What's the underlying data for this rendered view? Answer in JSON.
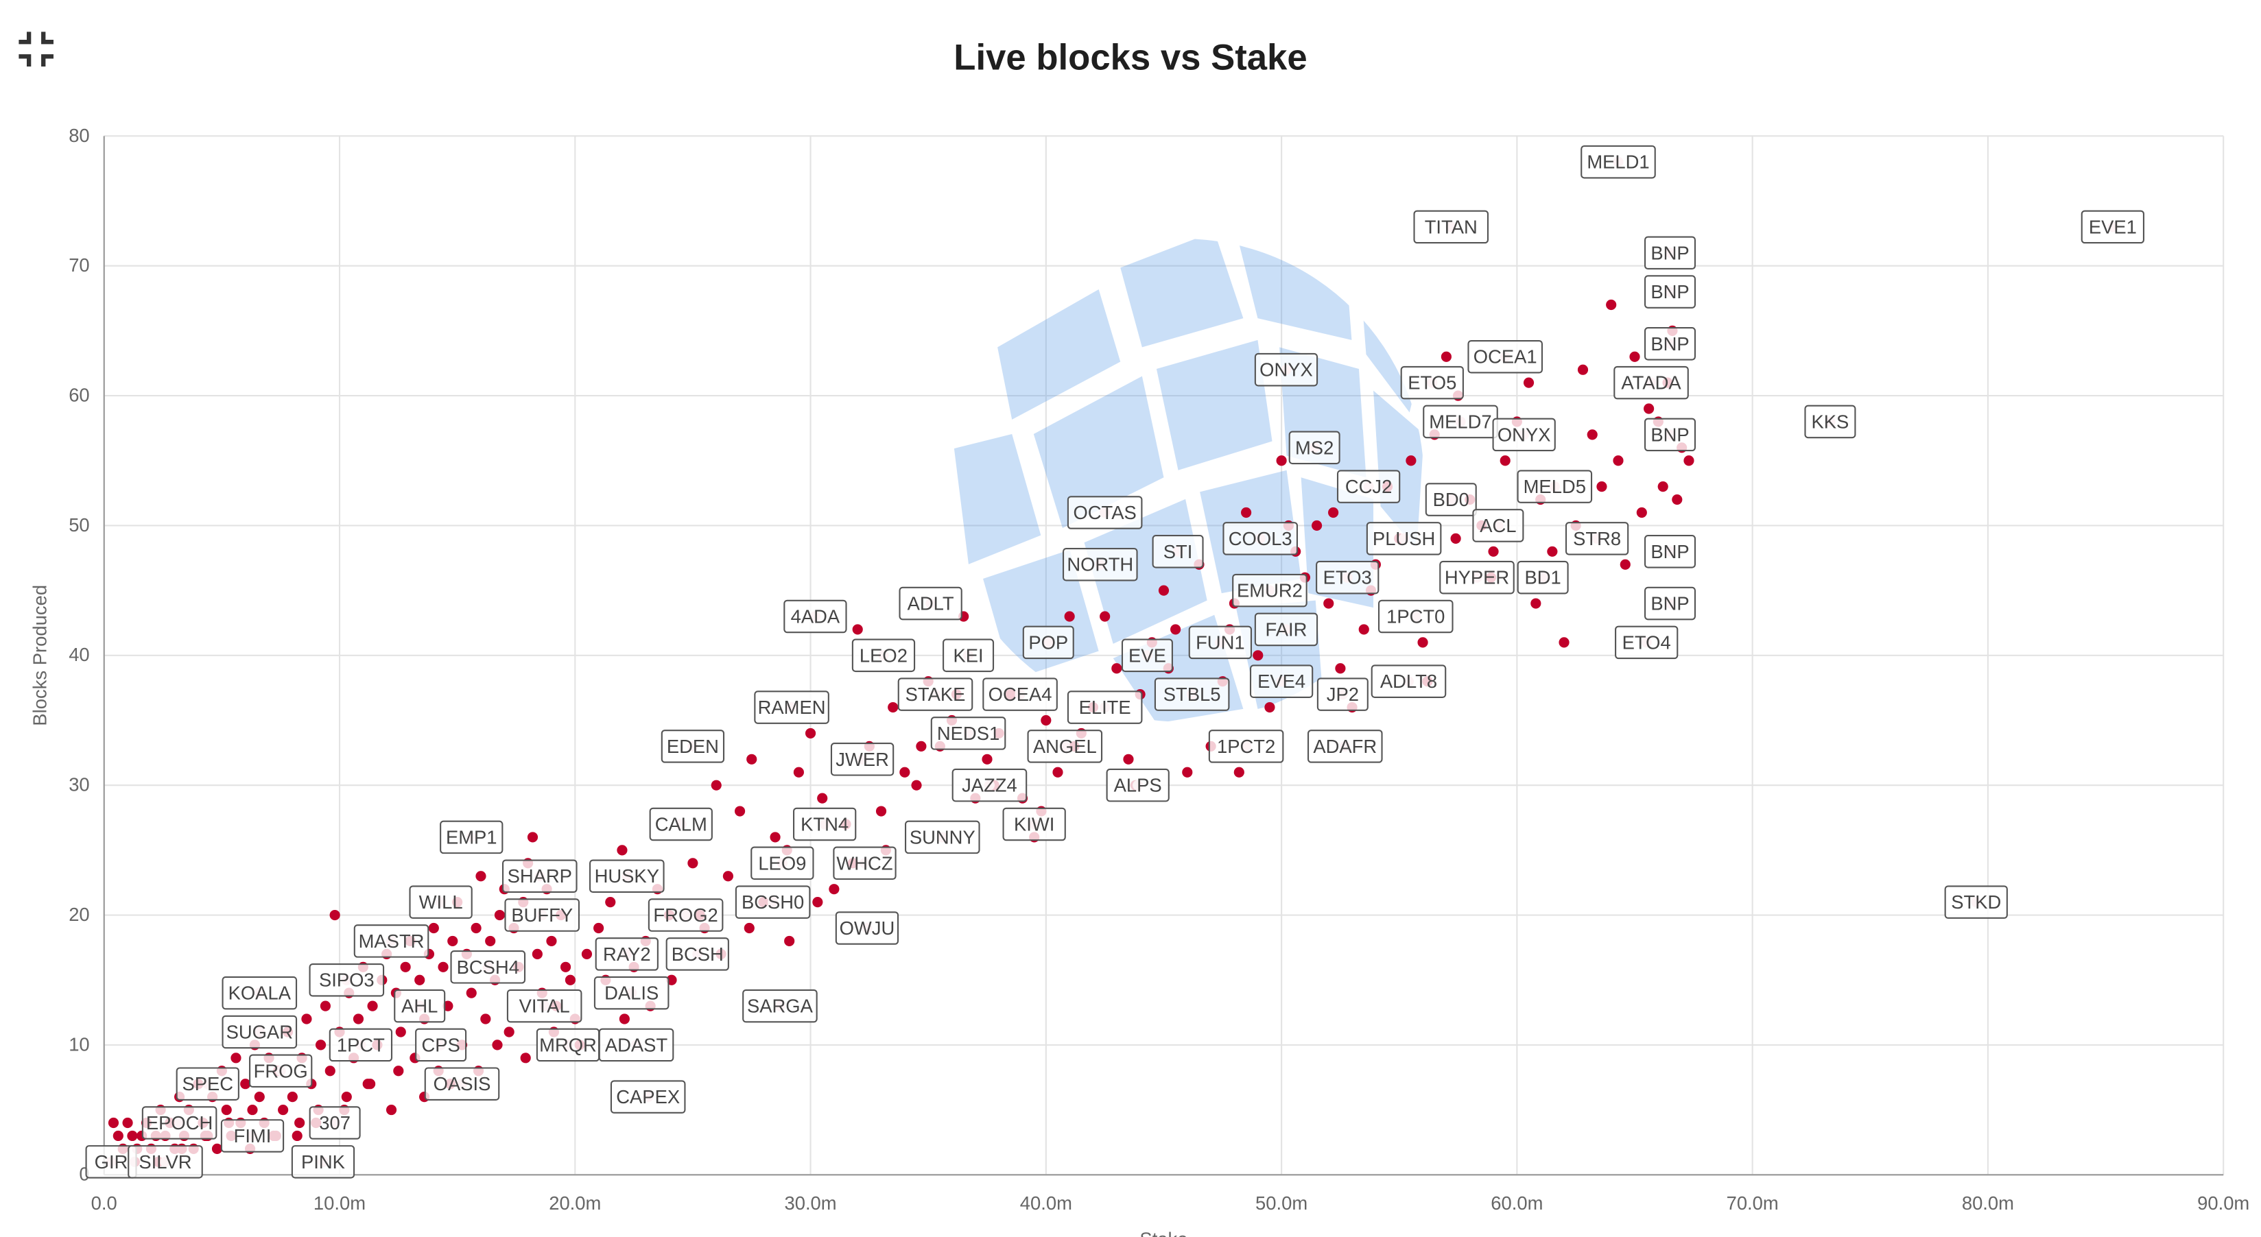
{
  "page": {
    "title": "Live blocks vs Stake",
    "exit_fullscreen_icon": "exit-fullscreen-icon",
    "watermark_icon": "globe-watermark-icon"
  },
  "chart_data": {
    "type": "scatter",
    "title": "Live blocks vs Stake",
    "xlabel": "Stake",
    "ylabel": "Blocks Produced",
    "xlim": [
      0,
      90
    ],
    "ylim": [
      0,
      80
    ],
    "x_unit": "m",
    "xticks": [
      "0.0",
      "10.0m",
      "20.0m",
      "30.0m",
      "40.0m",
      "50.0m",
      "60.0m",
      "70.0m",
      "80.0m",
      "90.0m"
    ],
    "yticks": [
      "0",
      "10",
      "20",
      "30",
      "40",
      "50",
      "60",
      "70",
      "80"
    ],
    "grid": true,
    "point_color": "#c0002a",
    "labeled_points": [
      {
        "name": "MELD1",
        "x": 64.3,
        "y": 78
      },
      {
        "name": "TITAN",
        "x": 57.2,
        "y": 73
      },
      {
        "name": "EVE1",
        "x": 85.3,
        "y": 73
      },
      {
        "name": "BNP",
        "x": 66.5,
        "y": 71
      },
      {
        "name": "BNP",
        "x": 66.5,
        "y": 68
      },
      {
        "name": "BNP",
        "x": 66.5,
        "y": 64
      },
      {
        "name": "ATADA",
        "x": 65.7,
        "y": 61
      },
      {
        "name": "OCEA1",
        "x": 59.5,
        "y": 63
      },
      {
        "name": "ETO5",
        "x": 56.4,
        "y": 61
      },
      {
        "name": "ONYX",
        "x": 50.2,
        "y": 62
      },
      {
        "name": "KKS",
        "x": 73.3,
        "y": 58
      },
      {
        "name": "MELD7",
        "x": 57.6,
        "y": 58
      },
      {
        "name": "ONYX",
        "x": 60.3,
        "y": 57
      },
      {
        "name": "BNP",
        "x": 66.5,
        "y": 57
      },
      {
        "name": "MS2",
        "x": 51.4,
        "y": 56
      },
      {
        "name": "CCJ2",
        "x": 53.7,
        "y": 53
      },
      {
        "name": "MELD5",
        "x": 61.6,
        "y": 53
      },
      {
        "name": "BD0",
        "x": 57.2,
        "y": 52
      },
      {
        "name": "OCTAS",
        "x": 42.5,
        "y": 51
      },
      {
        "name": "ACL",
        "x": 59.2,
        "y": 50
      },
      {
        "name": "COOL3",
        "x": 49.1,
        "y": 49
      },
      {
        "name": "PLUSH",
        "x": 55.2,
        "y": 49
      },
      {
        "name": "STR8",
        "x": 63.4,
        "y": 49
      },
      {
        "name": "STI",
        "x": 45.6,
        "y": 48
      },
      {
        "name": "BNP",
        "x": 66.5,
        "y": 48
      },
      {
        "name": "NORTH",
        "x": 42.3,
        "y": 47
      },
      {
        "name": "HYPER",
        "x": 58.3,
        "y": 46
      },
      {
        "name": "BD1",
        "x": 61.1,
        "y": 46
      },
      {
        "name": "ETO3",
        "x": 52.8,
        "y": 46
      },
      {
        "name": "EMUR2",
        "x": 49.5,
        "y": 45
      },
      {
        "name": "ADLT",
        "x": 35.1,
        "y": 44
      },
      {
        "name": "4ADA",
        "x": 30.2,
        "y": 43
      },
      {
        "name": "BNP",
        "x": 66.5,
        "y": 44
      },
      {
        "name": "1PCT0",
        "x": 55.7,
        "y": 43
      },
      {
        "name": "FAIR",
        "x": 50.2,
        "y": 42
      },
      {
        "name": "POP",
        "x": 40.1,
        "y": 41
      },
      {
        "name": "FUN1",
        "x": 47.4,
        "y": 41
      },
      {
        "name": "ETO4",
        "x": 65.5,
        "y": 41
      },
      {
        "name": "LEO2",
        "x": 33.1,
        "y": 40
      },
      {
        "name": "KEI",
        "x": 36.7,
        "y": 40
      },
      {
        "name": "EVE",
        "x": 44.3,
        "y": 40
      },
      {
        "name": "EVE4",
        "x": 50.0,
        "y": 38
      },
      {
        "name": "ADLT8",
        "x": 55.4,
        "y": 38
      },
      {
        "name": "STAKE",
        "x": 35.3,
        "y": 37
      },
      {
        "name": "OCEA4",
        "x": 38.9,
        "y": 37
      },
      {
        "name": "STBL5",
        "x": 46.2,
        "y": 37
      },
      {
        "name": "JP2",
        "x": 52.6,
        "y": 37
      },
      {
        "name": "RAMEN",
        "x": 29.2,
        "y": 36
      },
      {
        "name": "ELITE",
        "x": 42.5,
        "y": 36
      },
      {
        "name": "NEDS1",
        "x": 36.7,
        "y": 34
      },
      {
        "name": "EDEN",
        "x": 25.0,
        "y": 33
      },
      {
        "name": "ANGEL",
        "x": 40.8,
        "y": 33
      },
      {
        "name": "1PCT2",
        "x": 48.5,
        "y": 33
      },
      {
        "name": "ADAFR",
        "x": 52.7,
        "y": 33
      },
      {
        "name": "JWER",
        "x": 32.2,
        "y": 32
      },
      {
        "name": "JAZZ4",
        "x": 37.6,
        "y": 30
      },
      {
        "name": "ALPS",
        "x": 43.9,
        "y": 30
      },
      {
        "name": "EMP1",
        "x": 15.6,
        "y": 26
      },
      {
        "name": "CALM",
        "x": 24.5,
        "y": 27
      },
      {
        "name": "KTN4",
        "x": 30.6,
        "y": 27
      },
      {
        "name": "KIWI",
        "x": 39.5,
        "y": 27
      },
      {
        "name": "SUNNY",
        "x": 35.6,
        "y": 26
      },
      {
        "name": "SHARP",
        "x": 18.5,
        "y": 23
      },
      {
        "name": "HUSKY",
        "x": 22.2,
        "y": 23
      },
      {
        "name": "LEO9",
        "x": 28.8,
        "y": 24
      },
      {
        "name": "WHCZ",
        "x": 32.3,
        "y": 24
      },
      {
        "name": "WILL",
        "x": 14.3,
        "y": 21
      },
      {
        "name": "BUFFY",
        "x": 18.6,
        "y": 20
      },
      {
        "name": "FROG2",
        "x": 24.7,
        "y": 20
      },
      {
        "name": "BCSH0",
        "x": 28.4,
        "y": 21
      },
      {
        "name": "OWJU",
        "x": 32.4,
        "y": 19
      },
      {
        "name": "MASTR",
        "x": 12.2,
        "y": 18
      },
      {
        "name": "RAY2",
        "x": 22.2,
        "y": 17
      },
      {
        "name": "BCSH",
        "x": 25.2,
        "y": 17
      },
      {
        "name": "BCSH4",
        "x": 16.3,
        "y": 16
      },
      {
        "name": "SIPO3",
        "x": 10.3,
        "y": 15
      },
      {
        "name": "KOALA",
        "x": 6.6,
        "y": 14
      },
      {
        "name": "DALIS",
        "x": 22.4,
        "y": 14
      },
      {
        "name": "AHL",
        "x": 13.4,
        "y": 13
      },
      {
        "name": "VITAL",
        "x": 18.7,
        "y": 13
      },
      {
        "name": "SARGA",
        "x": 28.7,
        "y": 13
      },
      {
        "name": "SUGAR",
        "x": 6.6,
        "y": 11
      },
      {
        "name": "1PCT",
        "x": 10.9,
        "y": 10
      },
      {
        "name": "CPS",
        "x": 14.3,
        "y": 10
      },
      {
        "name": "MRQR",
        "x": 19.7,
        "y": 10
      },
      {
        "name": "ADAST",
        "x": 22.6,
        "y": 10
      },
      {
        "name": "FROG",
        "x": 7.5,
        "y": 8
      },
      {
        "name": "SPEC",
        "x": 4.4,
        "y": 7
      },
      {
        "name": "OASIS",
        "x": 15.2,
        "y": 7
      },
      {
        "name": "CAPEX",
        "x": 23.1,
        "y": 6
      },
      {
        "name": "EPOCH",
        "x": 3.2,
        "y": 4
      },
      {
        "name": "307",
        "x": 9.8,
        "y": 4
      },
      {
        "name": "FIMI",
        "x": 6.3,
        "y": 3
      },
      {
        "name": "GIR",
        "x": 0.3,
        "y": 1
      },
      {
        "name": "SILVR",
        "x": 2.6,
        "y": 1
      },
      {
        "name": "PINK",
        "x": 9.3,
        "y": 1
      },
      {
        "name": "STKD",
        "x": 79.5,
        "y": 21
      }
    ],
    "points": [
      [
        0.4,
        4
      ],
      [
        0.6,
        3
      ],
      [
        0.8,
        2
      ],
      [
        1.0,
        4
      ],
      [
        1.2,
        3
      ],
      [
        1.4,
        2
      ],
      [
        1.6,
        3
      ],
      [
        1.8,
        4
      ],
      [
        2.0,
        2
      ],
      [
        2.2,
        3
      ],
      [
        2.4,
        5
      ],
      [
        2.6,
        3
      ],
      [
        2.8,
        4
      ],
      [
        3.0,
        2
      ],
      [
        3.2,
        6
      ],
      [
        3.4,
        3
      ],
      [
        3.6,
        5
      ],
      [
        3.8,
        2
      ],
      [
        4.0,
        7
      ],
      [
        4.2,
        4
      ],
      [
        4.4,
        3
      ],
      [
        4.6,
        6
      ],
      [
        4.8,
        2
      ],
      [
        5.0,
        8
      ],
      [
        5.2,
        5
      ],
      [
        5.4,
        3
      ],
      [
        5.6,
        9
      ],
      [
        5.8,
        4
      ],
      [
        6.0,
        7
      ],
      [
        6.2,
        2
      ],
      [
        6.4,
        10
      ],
      [
        6.6,
        6
      ],
      [
        6.8,
        4
      ],
      [
        7.0,
        9
      ],
      [
        7.2,
        3
      ],
      [
        7.4,
        8
      ],
      [
        7.6,
        5
      ],
      [
        7.8,
        11
      ],
      [
        8.0,
        6
      ],
      [
        8.2,
        3
      ],
      [
        8.4,
        9
      ],
      [
        8.6,
        12
      ],
      [
        8.8,
        7
      ],
      [
        9.0,
        4
      ],
      [
        9.2,
        10
      ],
      [
        9.4,
        13
      ],
      [
        9.6,
        8
      ],
      [
        9.8,
        20
      ],
      [
        10.0,
        11
      ],
      [
        10.2,
        5
      ],
      [
        10.4,
        14
      ],
      [
        10.6,
        9
      ],
      [
        10.8,
        12
      ],
      [
        11.0,
        16
      ],
      [
        11.2,
        7
      ],
      [
        11.4,
        13
      ],
      [
        11.6,
        10
      ],
      [
        11.8,
        15
      ],
      [
        12.0,
        17
      ],
      [
        12.2,
        5
      ],
      [
        12.4,
        14
      ],
      [
        12.6,
        11
      ],
      [
        12.8,
        16
      ],
      [
        13.0,
        18
      ],
      [
        13.2,
        9
      ],
      [
        13.4,
        15
      ],
      [
        13.6,
        12
      ],
      [
        13.8,
        17
      ],
      [
        14.0,
        19
      ],
      [
        14.2,
        8
      ],
      [
        14.4,
        16
      ],
      [
        14.6,
        13
      ],
      [
        14.8,
        18
      ],
      [
        15.0,
        21
      ],
      [
        15.2,
        10
      ],
      [
        15.4,
        17
      ],
      [
        15.6,
        14
      ],
      [
        15.8,
        19
      ],
      [
        16.0,
        23
      ],
      [
        16.2,
        12
      ],
      [
        16.4,
        18
      ],
      [
        16.6,
        15
      ],
      [
        16.8,
        20
      ],
      [
        17.0,
        22
      ],
      [
        17.2,
        11
      ],
      [
        17.4,
        19
      ],
      [
        17.6,
        16
      ],
      [
        17.8,
        21
      ],
      [
        18.0,
        24
      ],
      [
        18.2,
        26
      ],
      [
        18.4,
        17
      ],
      [
        18.6,
        14
      ],
      [
        18.8,
        22
      ],
      [
        19.0,
        18
      ],
      [
        19.2,
        13
      ],
      [
        19.4,
        20
      ],
      [
        19.6,
        16
      ],
      [
        19.8,
        15
      ],
      [
        20.0,
        12
      ],
      [
        20.5,
        17
      ],
      [
        21.0,
        19
      ],
      [
        21.5,
        21
      ],
      [
        22.0,
        25
      ],
      [
        22.5,
        16
      ],
      [
        23.0,
        18
      ],
      [
        23.5,
        22
      ],
      [
        24.0,
        20
      ],
      [
        24.5,
        27
      ],
      [
        25.0,
        24
      ],
      [
        25.5,
        19
      ],
      [
        26.0,
        30
      ],
      [
        26.5,
        23
      ],
      [
        27.0,
        28
      ],
      [
        27.5,
        32
      ],
      [
        28.0,
        21
      ],
      [
        28.5,
        26
      ],
      [
        29.0,
        25
      ],
      [
        29.5,
        31
      ],
      [
        30.0,
        34
      ],
      [
        30.5,
        29
      ],
      [
        31.0,
        22
      ],
      [
        31.5,
        27
      ],
      [
        32.0,
        42
      ],
      [
        32.5,
        33
      ],
      [
        33.0,
        28
      ],
      [
        33.5,
        36
      ],
      [
        34.0,
        31
      ],
      [
        34.5,
        30
      ],
      [
        35.0,
        38
      ],
      [
        35.5,
        33
      ],
      [
        36.0,
        35
      ],
      [
        36.5,
        43
      ],
      [
        37.0,
        29
      ],
      [
        37.5,
        32
      ],
      [
        38.0,
        34
      ],
      [
        38.5,
        37
      ],
      [
        39.0,
        29
      ],
      [
        39.5,
        26
      ],
      [
        40.0,
        35
      ],
      [
        40.5,
        31
      ],
      [
        41.0,
        43
      ],
      [
        41.5,
        34
      ],
      [
        42.0,
        36
      ],
      [
        42.5,
        43
      ],
      [
        43.0,
        39
      ],
      [
        43.5,
        32
      ],
      [
        44.0,
        37
      ],
      [
        44.5,
        41
      ],
      [
        45.0,
        45
      ],
      [
        45.5,
        42
      ],
      [
        46.0,
        31
      ],
      [
        46.5,
        47
      ],
      [
        47.0,
        33
      ],
      [
        47.5,
        38
      ],
      [
        48.0,
        44
      ],
      [
        48.2,
        31
      ],
      [
        48.5,
        51
      ],
      [
        49.0,
        40
      ],
      [
        49.5,
        36
      ],
      [
        50.0,
        55
      ],
      [
        50.3,
        50
      ],
      [
        50.6,
        48
      ],
      [
        51.0,
        46
      ],
      [
        51.5,
        50
      ],
      [
        52.0,
        44
      ],
      [
        52.5,
        39
      ],
      [
        53.0,
        36
      ],
      [
        53.5,
        42
      ],
      [
        54.0,
        47
      ],
      [
        54.5,
        53
      ],
      [
        55.0,
        49
      ],
      [
        55.5,
        55
      ],
      [
        56.0,
        41
      ],
      [
        56.5,
        57
      ],
      [
        57.0,
        63
      ],
      [
        57.5,
        60
      ],
      [
        58.0,
        52
      ],
      [
        58.5,
        50
      ],
      [
        59.0,
        48
      ],
      [
        59.5,
        55
      ],
      [
        60.0,
        58
      ],
      [
        60.5,
        61
      ],
      [
        61.0,
        52
      ],
      [
        61.5,
        48
      ],
      [
        62.0,
        41
      ],
      [
        62.5,
        50
      ],
      [
        62.8,
        62
      ],
      [
        63.2,
        57
      ],
      [
        63.6,
        53
      ],
      [
        64.0,
        67
      ],
      [
        64.3,
        55
      ],
      [
        64.6,
        47
      ],
      [
        65.0,
        63
      ],
      [
        65.3,
        51
      ],
      [
        65.6,
        59
      ],
      [
        66.0,
        58
      ],
      [
        66.2,
        53
      ],
      [
        66.4,
        61
      ],
      [
        66.6,
        65
      ],
      [
        66.8,
        52
      ],
      [
        67.0,
        56
      ],
      [
        67.3,
        55
      ],
      [
        56.2,
        38
      ],
      [
        57.4,
        49
      ],
      [
        58.9,
        46
      ],
      [
        60.8,
        44
      ],
      [
        53.8,
        45
      ],
      [
        52.2,
        51
      ],
      [
        47.8,
        42
      ],
      [
        45.2,
        39
      ],
      [
        43.8,
        30
      ],
      [
        41.2,
        33
      ],
      [
        39.8,
        28
      ],
      [
        37.8,
        30
      ],
      [
        36.2,
        37
      ],
      [
        34.7,
        33
      ],
      [
        33.2,
        25
      ],
      [
        31.8,
        24
      ],
      [
        30.3,
        21
      ],
      [
        29.1,
        18
      ],
      [
        27.4,
        19
      ],
      [
        26.2,
        17
      ],
      [
        25.3,
        20
      ],
      [
        24.1,
        15
      ],
      [
        23.2,
        13
      ],
      [
        22.1,
        12
      ],
      [
        21.3,
        15
      ],
      [
        20.2,
        10
      ],
      [
        19.1,
        11
      ],
      [
        17.9,
        9
      ],
      [
        16.7,
        10
      ],
      [
        15.9,
        8
      ],
      [
        14.7,
        7
      ],
      [
        13.6,
        6
      ],
      [
        12.5,
        8
      ],
      [
        11.3,
        7
      ],
      [
        10.3,
        6
      ],
      [
        9.1,
        5
      ],
      [
        8.3,
        4
      ],
      [
        7.3,
        3
      ],
      [
        6.3,
        5
      ],
      [
        5.3,
        4
      ],
      [
        4.3,
        3
      ],
      [
        3.3,
        2
      ],
      [
        2.3,
        1
      ],
      [
        1.3,
        1
      ]
    ]
  }
}
